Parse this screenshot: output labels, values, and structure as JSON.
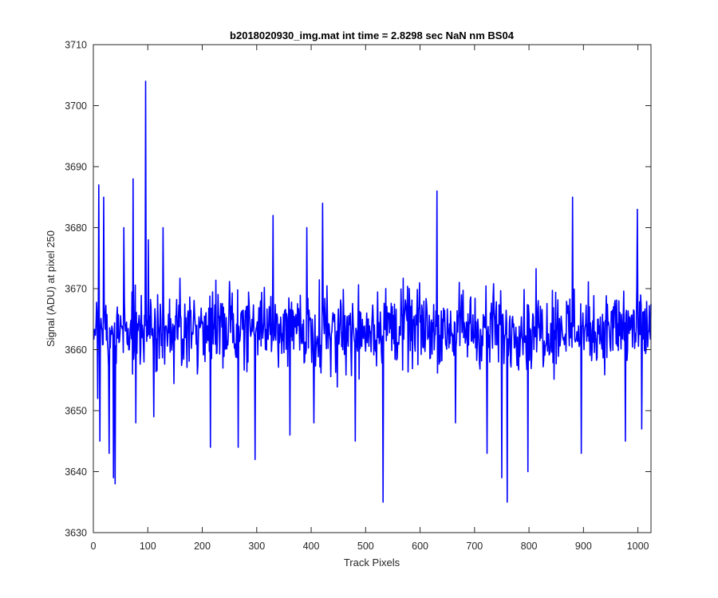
{
  "chart_data": {
    "type": "line",
    "title": "b2018020930_img.mat int time = 2.8298 sec  NaN nm BS04",
    "xlabel": "Track Pixels",
    "ylabel": "Signal (ADU) at pixel 250",
    "xlim": [
      0,
      1024
    ],
    "ylim": [
      3630,
      3710
    ],
    "xticks": [
      0,
      100,
      200,
      300,
      400,
      500,
      600,
      700,
      800,
      900,
      1000
    ],
    "yticks": [
      3630,
      3640,
      3650,
      3660,
      3670,
      3680,
      3690,
      3700,
      3710
    ],
    "grid": false,
    "line_color": "#0000ff",
    "x_start": 1,
    "points_count": 1024,
    "baseline": 3663.5,
    "noise_amplitude": 7,
    "features": [
      {
        "x": 8,
        "y": 3652
      },
      {
        "x": 10,
        "y": 3687
      },
      {
        "x": 12,
        "y": 3645
      },
      {
        "x": 19,
        "y": 3685
      },
      {
        "x": 29,
        "y": 3643
      },
      {
        "x": 37,
        "y": 3639
      },
      {
        "x": 40,
        "y": 3638
      },
      {
        "x": 56,
        "y": 3680
      },
      {
        "x": 73,
        "y": 3688
      },
      {
        "x": 78,
        "y": 3648
      },
      {
        "x": 96,
        "y": 3704
      },
      {
        "x": 101,
        "y": 3678
      },
      {
        "x": 111,
        "y": 3649
      },
      {
        "x": 128,
        "y": 3680
      },
      {
        "x": 215,
        "y": 3644
      },
      {
        "x": 266,
        "y": 3644
      },
      {
        "x": 297,
        "y": 3642
      },
      {
        "x": 330,
        "y": 3682
      },
      {
        "x": 361,
        "y": 3646
      },
      {
        "x": 392,
        "y": 3680
      },
      {
        "x": 405,
        "y": 3648
      },
      {
        "x": 421,
        "y": 3684
      },
      {
        "x": 481,
        "y": 3645
      },
      {
        "x": 532,
        "y": 3635
      },
      {
        "x": 631,
        "y": 3686
      },
      {
        "x": 665,
        "y": 3648
      },
      {
        "x": 723,
        "y": 3643
      },
      {
        "x": 750,
        "y": 3639
      },
      {
        "x": 760,
        "y": 3635
      },
      {
        "x": 798,
        "y": 3640
      },
      {
        "x": 880,
        "y": 3685
      },
      {
        "x": 896,
        "y": 3643
      },
      {
        "x": 977,
        "y": 3645
      },
      {
        "x": 999,
        "y": 3683
      },
      {
        "x": 1007,
        "y": 3647
      }
    ]
  }
}
